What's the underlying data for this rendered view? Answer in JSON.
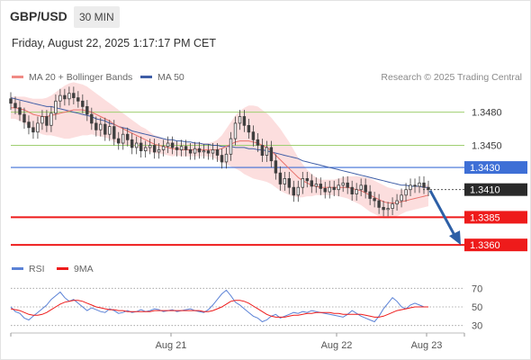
{
  "header": {
    "symbol": "GBP/USD",
    "timeframe": "30 MIN",
    "datetime": "Friday, August 22, 2025 1:17:17 PM CET",
    "credit": "Research © 2025 Trading Central"
  },
  "colors": {
    "candle": "#3f3f3f",
    "ma20": "#e8706a",
    "bollinger": "#fbd3d3",
    "ma50": "#3e5da6",
    "green_level": "#9fcf71",
    "blue_level": "#3e6fd6",
    "red_level": "#ee1b1b",
    "price_tag": "#2a2a2a",
    "rsi": "#5b82d6",
    "rsi_ma": "#ee1b1b",
    "forecast_arrow": "#2d5fa6"
  },
  "chart_data": [
    {
      "type": "candlestick",
      "legend": [
        {
          "name": "MA 20 + Bollinger Bands",
          "color": "#f08a85"
        },
        {
          "name": "MA 50",
          "color": "#3e5da6"
        }
      ],
      "x_ticks": [
        "Aug 21",
        "Aug 22",
        "Aug 23"
      ],
      "y_range": [
        1.3352,
        1.35
      ],
      "levels": [
        {
          "label": "1.3480",
          "value": 1.348,
          "kind": "resistance-green"
        },
        {
          "label": "1.3450",
          "value": 1.345,
          "kind": "resistance-green"
        },
        {
          "label": "1.3430",
          "value": 1.343,
          "kind": "pivot-blue"
        },
        {
          "label": "1.3410",
          "value": 1.341,
          "kind": "last-price"
        },
        {
          "label": "1.3385",
          "value": 1.3385,
          "kind": "support-red"
        },
        {
          "label": "1.3360",
          "value": 1.336,
          "kind": "support-red"
        }
      ],
      "close": [
        1.3488,
        1.3484,
        1.3478,
        1.3471,
        1.3466,
        1.3462,
        1.347,
        1.3476,
        1.3468,
        1.3479,
        1.349,
        1.3495,
        1.3492,
        1.3497,
        1.3493,
        1.349,
        1.3485,
        1.3478,
        1.347,
        1.3464,
        1.3469,
        1.346,
        1.3467,
        1.3456,
        1.3452,
        1.346,
        1.3455,
        1.3448,
        1.3452,
        1.3445,
        1.3448,
        1.345,
        1.3444,
        1.3446,
        1.3449,
        1.3452,
        1.3448,
        1.3446,
        1.3449,
        1.3446,
        1.3443,
        1.3447,
        1.3444,
        1.3445,
        1.3443,
        1.3446,
        1.3441,
        1.3435,
        1.3442,
        1.3456,
        1.347,
        1.3476,
        1.3468,
        1.3462,
        1.3455,
        1.345,
        1.3441,
        1.3448,
        1.3436,
        1.3425,
        1.3415,
        1.342,
        1.3412,
        1.3405,
        1.3412,
        1.342,
        1.3418,
        1.3413,
        1.3415,
        1.3411,
        1.3408,
        1.3412,
        1.341,
        1.3414,
        1.3416,
        1.3412,
        1.3406,
        1.341,
        1.3414,
        1.3408,
        1.3402,
        1.34,
        1.3394,
        1.3392,
        1.3393,
        1.3397,
        1.34,
        1.3405,
        1.341,
        1.3414,
        1.3413,
        1.3416,
        1.3412,
        1.341
      ],
      "ma20": [
        1.3484,
        1.3484,
        1.3483,
        1.3482,
        1.348,
        1.3478,
        1.3477,
        1.3476,
        1.3476,
        1.3477,
        1.3478,
        1.3479,
        1.348,
        1.3481,
        1.3482,
        1.3482,
        1.3482,
        1.3481,
        1.348,
        1.3478,
        1.3476,
        1.3474,
        1.3472,
        1.3469,
        1.3467,
        1.3465,
        1.3463,
        1.3461,
        1.3459,
        1.3457,
        1.3455,
        1.3453,
        1.3451,
        1.345,
        1.3449,
        1.3448,
        1.3447,
        1.3447,
        1.3446,
        1.3446,
        1.3446,
        1.3446,
        1.3446,
        1.3446,
        1.3446,
        1.3446,
        1.3446,
        1.3447,
        1.3449,
        1.3451,
        1.3453,
        1.3454,
        1.3454,
        1.3454,
        1.3453,
        1.3452,
        1.345,
        1.3448,
        1.3445,
        1.3441,
        1.3437,
        1.3433,
        1.3429,
        1.3425,
        1.3421,
        1.3418,
        1.3416,
        1.3414,
        1.3413,
        1.3412,
        1.3412,
        1.3412,
        1.3412,
        1.3412,
        1.3412,
        1.3412,
        1.3411,
        1.341,
        1.3409,
        1.3407,
        1.3405,
        1.3403,
        1.3401,
        1.3399,
        1.3398,
        1.3398,
        1.3398,
        1.3399,
        1.34,
        1.3401,
        1.3402,
        1.3403,
        1.3404,
        1.3405
      ],
      "ma50": [
        1.3493,
        1.3492,
        1.3491,
        1.349,
        1.3489,
        1.3488,
        1.3487,
        1.3486,
        1.3485,
        1.3485,
        1.3484,
        1.3483,
        1.3482,
        1.3481,
        1.348,
        1.3479,
        1.3478,
        1.3477,
        1.3476,
        1.3474,
        1.3473,
        1.3472,
        1.347,
        1.3469,
        1.3467,
        1.3466,
        1.3465,
        1.3463,
        1.3462,
        1.3461,
        1.346,
        1.3459,
        1.3458,
        1.3457,
        1.3456,
        1.3455,
        1.3455,
        1.3454,
        1.3454,
        1.3453,
        1.3453,
        1.3452,
        1.3452,
        1.3451,
        1.3451,
        1.345,
        1.345,
        1.3449,
        1.3449,
        1.3449,
        1.3448,
        1.3448,
        1.3448,
        1.3447,
        1.3447,
        1.3446,
        1.3446,
        1.3445,
        1.3444,
        1.3443,
        1.3442,
        1.3441,
        1.344,
        1.3439,
        1.3438,
        1.3436,
        1.3435,
        1.3434,
        1.3433,
        1.3432,
        1.3431,
        1.343,
        1.3429,
        1.3428,
        1.3427,
        1.3426,
        1.3425,
        1.3424,
        1.3423,
        1.3422,
        1.3421,
        1.342,
        1.3419,
        1.3418,
        1.3417,
        1.3416,
        1.3415,
        1.3414,
        1.3414,
        1.3413,
        1.3413,
        1.3413,
        1.3412,
        1.3412
      ],
      "bb_width": [
        0.001,
        0.001,
        0.0011,
        0.0012,
        0.0013,
        0.0014,
        0.0015,
        0.0016,
        0.0017,
        0.0018,
        0.002,
        0.0022,
        0.0024,
        0.0025,
        0.0025,
        0.0024,
        0.0023,
        0.0022,
        0.002,
        0.0019,
        0.0018,
        0.0017,
        0.0016,
        0.0016,
        0.0015,
        0.0014,
        0.0013,
        0.0012,
        0.0011,
        0.001,
        0.001,
        0.0009,
        0.0008,
        0.0008,
        0.0007,
        0.0007,
        0.0007,
        0.0006,
        0.0006,
        0.0006,
        0.0006,
        0.0006,
        0.0006,
        0.0006,
        0.0006,
        0.0007,
        0.0009,
        0.0012,
        0.0016,
        0.002,
        0.0024,
        0.0027,
        0.003,
        0.0032,
        0.0033,
        0.0033,
        0.0032,
        0.0031,
        0.003,
        0.0029,
        0.0028,
        0.0026,
        0.0024,
        0.0021,
        0.0018,
        0.0015,
        0.0012,
        0.001,
        0.0008,
        0.0007,
        0.0007,
        0.0007,
        0.0007,
        0.0008,
        0.0009,
        0.001,
        0.0011,
        0.0012,
        0.0013,
        0.0014,
        0.0015,
        0.0015,
        0.0015,
        0.0015,
        0.0014,
        0.0013,
        0.0012,
        0.0011,
        0.001,
        0.001,
        0.001,
        0.001,
        0.001,
        0.001
      ],
      "forecast": {
        "from": 1.341,
        "to": 1.336
      }
    },
    {
      "type": "line",
      "legend": [
        {
          "name": "RSI",
          "color": "#5b82d6"
        },
        {
          "name": "9MA",
          "color": "#ee1b1b"
        }
      ],
      "y_ticks": [
        70,
        50,
        30
      ],
      "y_range": [
        20,
        80
      ],
      "rsi": [
        50,
        45,
        43,
        38,
        36,
        40,
        44,
        48,
        52,
        58,
        62,
        66,
        60,
        56,
        58,
        54,
        50,
        46,
        49,
        47,
        45,
        44,
        48,
        46,
        43,
        44,
        46,
        44,
        45,
        47,
        45,
        46,
        48,
        47,
        45,
        46,
        47,
        45,
        46,
        47,
        48,
        46,
        45,
        44,
        47,
        52,
        58,
        64,
        68,
        62,
        55,
        52,
        48,
        44,
        40,
        38,
        34,
        36,
        40,
        42,
        38,
        40,
        42,
        44,
        43,
        45,
        44,
        46,
        45,
        44,
        43,
        42,
        41,
        40,
        39,
        42,
        46,
        43,
        40,
        38,
        36,
        34,
        40,
        48,
        54,
        60,
        56,
        50,
        48,
        52,
        54,
        52,
        50,
        50
      ],
      "rsi_ma": [
        48,
        47,
        46,
        44,
        42,
        41,
        41,
        42,
        44,
        47,
        50,
        53,
        55,
        56,
        57,
        57,
        56,
        54,
        52,
        50,
        49,
        48,
        47,
        47,
        46,
        46,
        45,
        45,
        45,
        45,
        45,
        45,
        46,
        46,
        46,
        46,
        46,
        46,
        46,
        46,
        46,
        46,
        46,
        45,
        45,
        46,
        48,
        50,
        53,
        56,
        57,
        57,
        56,
        54,
        51,
        48,
        45,
        42,
        40,
        39,
        39,
        39,
        40,
        41,
        41,
        42,
        43,
        43,
        44,
        44,
        44,
        44,
        43,
        43,
        42,
        42,
        42,
        42,
        42,
        41,
        40,
        39,
        39,
        40,
        42,
        44,
        46,
        47,
        48,
        49,
        50,
        50,
        50,
        50
      ]
    }
  ]
}
